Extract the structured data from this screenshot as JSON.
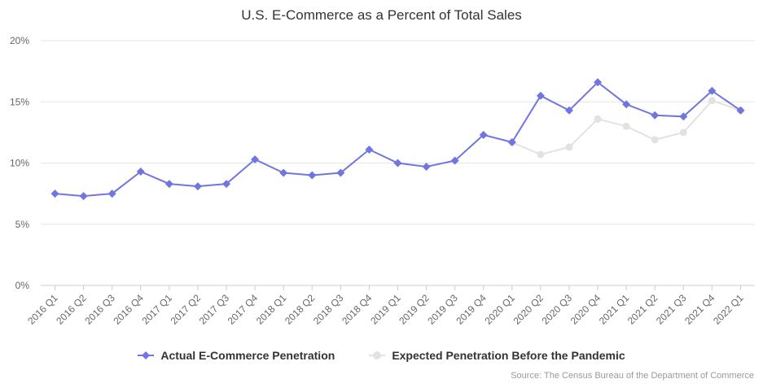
{
  "chart_data": {
    "type": "line",
    "title": "U.S. E-Commerce as a Percent of Total Sales",
    "categories": [
      "2016 Q1",
      "2016 Q2",
      "2016 Q3",
      "2016 Q4",
      "2017 Q1",
      "2017 Q2",
      "2017 Q3",
      "2017 Q4",
      "2018 Q1",
      "2018 Q2",
      "2018 Q3",
      "2018 Q4",
      "2019 Q1",
      "2019 Q2",
      "2019 Q3",
      "2019 Q4",
      "2020 Q1",
      "2020 Q2",
      "2020 Q3",
      "2020 Q4",
      "2021 Q1",
      "2021 Q2",
      "2021 Q3",
      "2021 Q4",
      "2022 Q1"
    ],
    "y_ticks": [
      "0%",
      "5%",
      "10%",
      "15%",
      "20%"
    ],
    "ylim": [
      0,
      20
    ],
    "grid": true,
    "legend_position": "bottom",
    "series": [
      {
        "name": "Actual E-Commerce Penetration",
        "color": "#7175e0",
        "marker": "diamond",
        "values": [
          7.5,
          7.3,
          7.5,
          9.3,
          8.3,
          8.1,
          8.3,
          10.3,
          9.2,
          9.0,
          9.2,
          11.1,
          10.0,
          9.7,
          10.2,
          12.3,
          11.7,
          15.5,
          14.3,
          16.6,
          14.8,
          13.9,
          13.8,
          15.9,
          14.3
        ]
      },
      {
        "name": "Expected Penetration Before the Pandemic",
        "color": "#e2e2e2",
        "marker": "circle",
        "values": [
          null,
          null,
          null,
          null,
          null,
          null,
          null,
          null,
          null,
          null,
          null,
          null,
          null,
          null,
          null,
          null,
          11.7,
          10.7,
          11.3,
          13.6,
          13.0,
          11.9,
          12.5,
          15.1,
          14.3
        ]
      }
    ],
    "source": "Source: The Census Bureau of the Department of Commerce"
  }
}
